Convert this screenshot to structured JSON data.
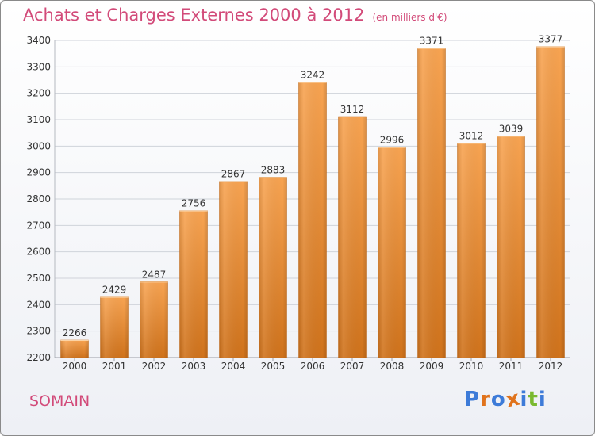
{
  "header": {
    "title": "Achats et Charges Externes 2000 à 2012",
    "unit": "(en milliers d'€)"
  },
  "footer": {
    "city": "SOMAIN",
    "brand": "Proxiti"
  },
  "colors": {
    "title": "#d24a79",
    "bar_top": "#f8a452",
    "bar_bottom": "#d0731c",
    "grid": "#cfd3da",
    "logo_letters": [
      "#3d7bd8",
      "#e0731c",
      "#3d7bd8",
      "#e0731c",
      "#3d7bd8",
      "#7ab92f",
      "#3d7bd8"
    ]
  },
  "chart_data": {
    "type": "bar",
    "title": "Achats et Charges Externes 2000 à 2012",
    "subtitle": "(en milliers d'€)",
    "xlabel": "",
    "ylabel": "",
    "categories": [
      "2000",
      "2001",
      "2002",
      "2003",
      "2004",
      "2005",
      "2006",
      "2007",
      "2008",
      "2009",
      "2010",
      "2011",
      "2012"
    ],
    "values": [
      2266,
      2429,
      2487,
      2756,
      2867,
      2883,
      3242,
      3112,
      2996,
      3371,
      3012,
      3039,
      3377
    ],
    "ylim": [
      2200,
      3400
    ],
    "yticks": [
      2200,
      2300,
      2400,
      2500,
      2600,
      2700,
      2800,
      2900,
      3000,
      3100,
      3200,
      3300,
      3400
    ],
    "grid": true,
    "data_labels": true
  }
}
